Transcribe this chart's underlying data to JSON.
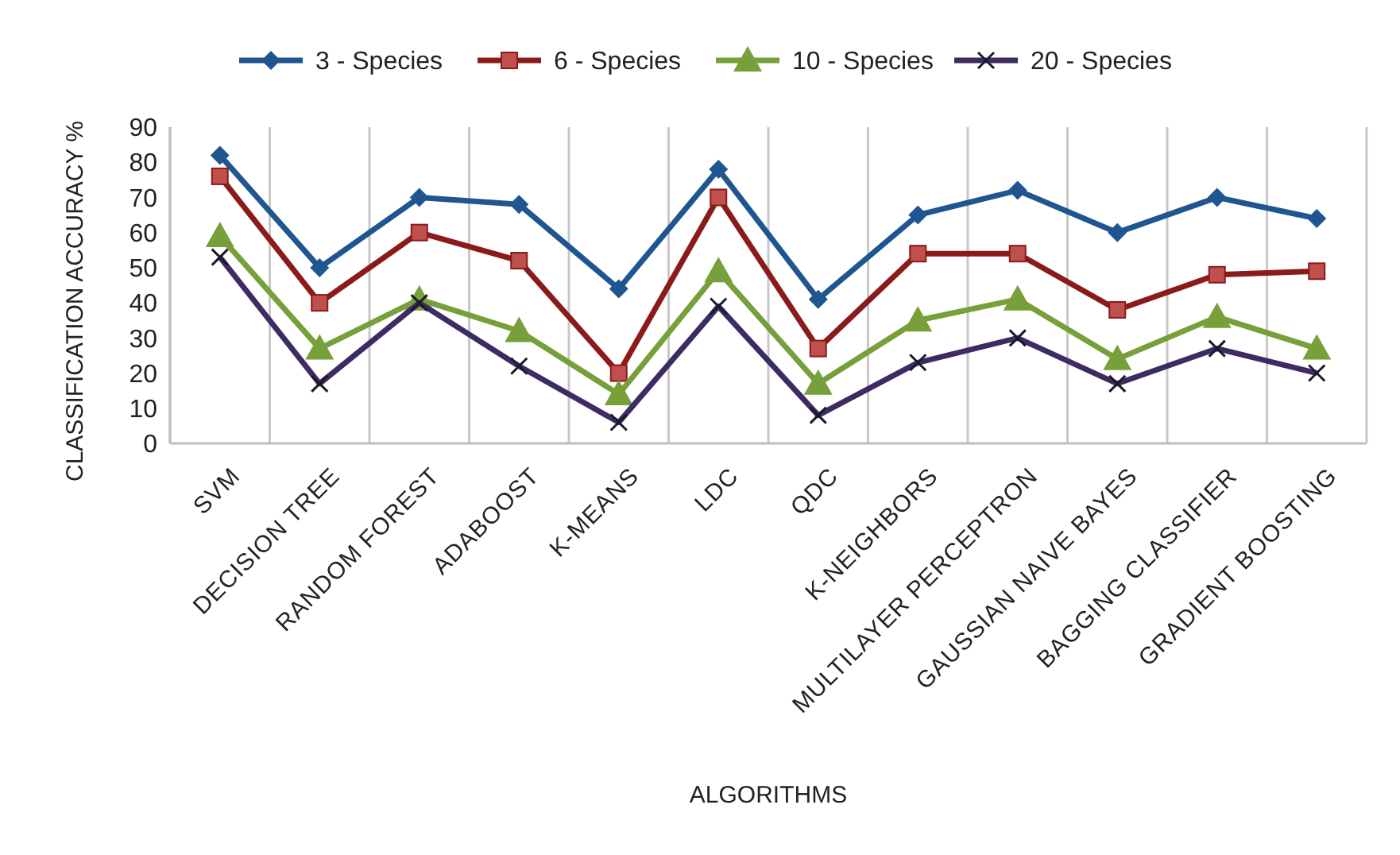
{
  "chart_data": {
    "type": "line",
    "xlabel": "ALGORITHMS",
    "ylabel": "CLASSIFICATION ACCURACY %",
    "categories": [
      "SVM",
      "DECISION TREE",
      "RANDOM FOREST",
      "ADABOOST",
      "K-MEANS",
      "LDC",
      "QDC",
      "K-NEIGHBORS",
      "MULTILAYER PERCEPTRON",
      "GAUSSIAN NAIVE BAYES",
      "BAGGING CLASSIFIER",
      "GRADIENT BOOSTING"
    ],
    "series": [
      {
        "name": "3 - Species",
        "color": "#1f5591",
        "marker": "diamond",
        "values": [
          82,
          50,
          70,
          68,
          44,
          78,
          41,
          65,
          72,
          60,
          70,
          64
        ]
      },
      {
        "name": "6 - Species",
        "color": "#8b1a1a",
        "marker": "square",
        "values": [
          76,
          40,
          60,
          52,
          20,
          70,
          27,
          54,
          54,
          38,
          48,
          49
        ]
      },
      {
        "name": "10 - Species",
        "color": "#77a03a",
        "marker": "triangle",
        "values": [
          59,
          27,
          41,
          32,
          14,
          49,
          17,
          35,
          41,
          24,
          36,
          27
        ]
      },
      {
        "name": "20 - Species",
        "color": "#3f2b63",
        "marker": "cross",
        "values": [
          53,
          17,
          40,
          22,
          6,
          39,
          8,
          23,
          30,
          17,
          27,
          20
        ]
      }
    ],
    "ylim": [
      0,
      90
    ],
    "yticks": [
      0,
      10,
      20,
      30,
      40,
      50,
      60,
      70,
      80,
      90
    ],
    "grid": "x",
    "legend": "top"
  }
}
